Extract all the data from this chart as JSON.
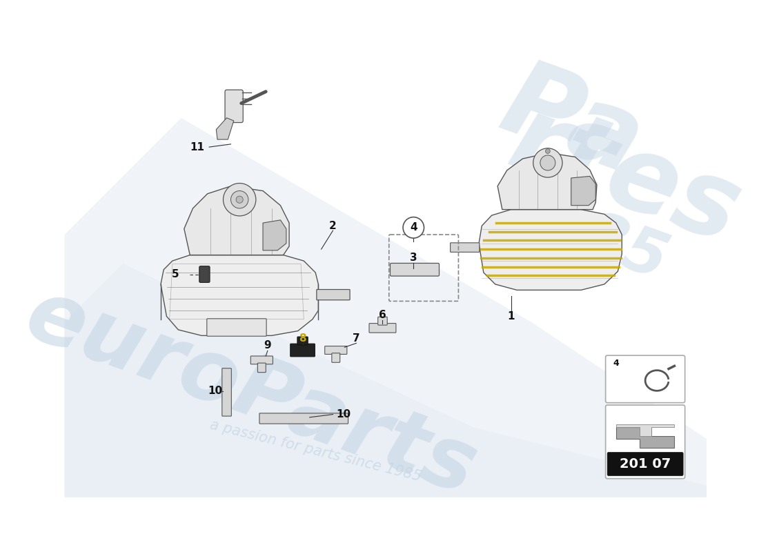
{
  "background_color": "#ffffff",
  "watermark_color": "#c5d5e5",
  "diagram_code": "201 07",
  "line_color": "#3a3a3a",
  "tank_line_color": "#555555",
  "tank_fill": "#f0f0f0",
  "tank_inner": "#e0e0e0",
  "yellow_stripe": "#c8a800",
  "label_color": "#111111",
  "label8_color": "#c8a800",
  "watermark_text": "euroParts",
  "watermark_sub": "a passion for parts since 1985"
}
